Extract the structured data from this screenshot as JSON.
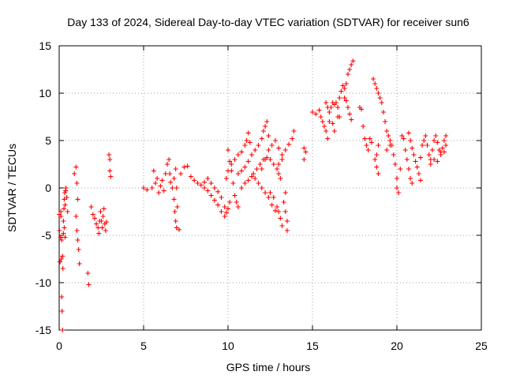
{
  "chart_data": {
    "type": "scatter",
    "title": "Day 133 of 2024, Sidereal Day-to-day VTEC variation (SDTVAR) for receiver sun6",
    "xlabel": "GPS time / hours",
    "ylabel": "SDTVAR / TECUs",
    "xlim": [
      0,
      25
    ],
    "ylim": [
      -15,
      15
    ],
    "x_ticks": [
      0,
      5,
      10,
      15,
      20,
      25
    ],
    "x_tick_labels": [
      "0",
      "5",
      "10",
      "15",
      "20",
      "25"
    ],
    "y_ticks": [
      -15,
      -10,
      -5,
      0,
      5,
      10,
      15
    ],
    "y_tick_labels": [
      "-15",
      "-10",
      "-5",
      "0",
      "5",
      "10",
      "15"
    ],
    "grid": true,
    "marker": "+",
    "series": [
      {
        "name": "SDTVAR sun6",
        "color": "#ff0000",
        "points": [
          [
            0.0,
            -2.8
          ],
          [
            0.02,
            -4.5
          ],
          [
            0.05,
            -7.8
          ],
          [
            0.08,
            -5.2
          ],
          [
            0.1,
            -3.0
          ],
          [
            0.12,
            -7.5
          ],
          [
            0.15,
            -11.5
          ],
          [
            0.17,
            -13.0
          ],
          [
            0.2,
            -15.0
          ],
          [
            0.22,
            -8.5
          ],
          [
            0.25,
            -4.8
          ],
          [
            0.28,
            -2.2
          ],
          [
            0.3,
            -1.2
          ],
          [
            0.33,
            -0.5
          ],
          [
            0.35,
            -1.8
          ],
          [
            0.38,
            -0.3
          ],
          [
            0.4,
            0.0
          ],
          [
            0.45,
            -1.0
          ],
          [
            0.5,
            -2.5
          ],
          [
            0.1,
            -2.5
          ],
          [
            0.15,
            -5.5
          ],
          [
            0.2,
            -7.2
          ],
          [
            0.25,
            -3.5
          ],
          [
            0.3,
            -4.2
          ],
          [
            0.35,
            -5.2
          ],
          [
            0.9,
            1.5
          ],
          [
            1.0,
            2.2
          ],
          [
            1.05,
            0.5
          ],
          [
            1.1,
            -1.2
          ],
          [
            1.0,
            -3.0
          ],
          [
            1.05,
            -4.5
          ],
          [
            1.1,
            -5.5
          ],
          [
            1.15,
            -6.5
          ],
          [
            1.2,
            -8.0
          ],
          [
            1.7,
            -9.0
          ],
          [
            1.75,
            -10.2
          ],
          [
            1.9,
            -2.0
          ],
          [
            2.0,
            -2.8
          ],
          [
            2.1,
            -3.2
          ],
          [
            2.2,
            -3.8
          ],
          [
            2.3,
            -4.2
          ],
          [
            2.35,
            -4.8
          ],
          [
            2.4,
            -3.5
          ],
          [
            2.45,
            -2.5
          ],
          [
            2.5,
            -3.5
          ],
          [
            2.55,
            -4.2
          ],
          [
            2.6,
            -3.0
          ],
          [
            2.65,
            -2.2
          ],
          [
            2.7,
            -3.8
          ],
          [
            2.75,
            -4.5
          ],
          [
            2.8,
            -3.6
          ],
          [
            2.95,
            3.5
          ],
          [
            3.0,
            3.0
          ],
          [
            3.0,
            1.8
          ],
          [
            3.05,
            1.2
          ],
          [
            5.0,
            0.0
          ],
          [
            5.2,
            -0.2
          ],
          [
            5.5,
            0.0
          ],
          [
            5.6,
            1.8
          ],
          [
            5.7,
            0.5
          ],
          [
            5.8,
            1.0
          ],
          [
            5.9,
            -0.5
          ],
          [
            6.0,
            0.2
          ],
          [
            6.1,
            0.8
          ],
          [
            6.2,
            -0.3
          ],
          [
            6.3,
            1.5
          ],
          [
            6.4,
            2.5
          ],
          [
            6.5,
            3.0
          ],
          [
            6.55,
            1.5
          ],
          [
            6.6,
            0.6
          ],
          [
            6.7,
            0.0
          ],
          [
            6.8,
            1.0
          ],
          [
            6.9,
            2.0
          ],
          [
            6.95,
            0.0
          ],
          [
            6.8,
            -1.2
          ],
          [
            6.85,
            -2.5
          ],
          [
            6.9,
            -3.5
          ],
          [
            6.95,
            -4.2
          ],
          [
            7.0,
            -2.0
          ],
          [
            7.1,
            -4.4
          ],
          [
            7.2,
            1.5
          ],
          [
            7.4,
            2.2
          ],
          [
            7.6,
            2.3
          ],
          [
            7.8,
            1.2
          ],
          [
            8.0,
            0.8
          ],
          [
            8.2,
            0.5
          ],
          [
            8.4,
            0.3
          ],
          [
            8.6,
            0.6
          ],
          [
            8.8,
            1.0
          ],
          [
            9.0,
            0.5
          ],
          [
            9.2,
            0.0
          ],
          [
            9.4,
            -0.4
          ],
          [
            9.6,
            -1.0
          ],
          [
            9.8,
            -2.0
          ],
          [
            9.9,
            -2.6
          ],
          [
            10.0,
            -2.2
          ],
          [
            10.1,
            -1.5
          ],
          [
            8.6,
            0.0
          ],
          [
            8.8,
            -0.3
          ],
          [
            9.0,
            -0.8
          ],
          [
            9.2,
            -1.3
          ],
          [
            9.4,
            -1.8
          ],
          [
            9.6,
            -2.5
          ],
          [
            9.8,
            -3.0
          ],
          [
            10.0,
            4.0
          ],
          [
            10.1,
            2.8
          ],
          [
            10.2,
            1.8
          ],
          [
            10.3,
            0.5
          ],
          [
            10.4,
            -0.8
          ],
          [
            10.5,
            -1.5
          ],
          [
            10.6,
            -2.0
          ],
          [
            9.9,
            1.0
          ],
          [
            10.0,
            1.8
          ],
          [
            10.2,
            2.5
          ],
          [
            10.4,
            3.0
          ],
          [
            10.6,
            3.5
          ],
          [
            10.8,
            3.8
          ],
          [
            11.0,
            4.5
          ],
          [
            11.1,
            5.0
          ],
          [
            11.2,
            5.8
          ],
          [
            11.3,
            4.8
          ],
          [
            10.6,
            1.5
          ],
          [
            10.8,
            1.8
          ],
          [
            11.0,
            2.2
          ],
          [
            11.2,
            2.8
          ],
          [
            11.4,
            3.5
          ],
          [
            11.6,
            4.0
          ],
          [
            11.8,
            4.5
          ],
          [
            12.0,
            5.2
          ],
          [
            12.1,
            6.0
          ],
          [
            12.2,
            6.5
          ],
          [
            12.3,
            7.0
          ],
          [
            12.4,
            5.5
          ],
          [
            10.8,
            0.0
          ],
          [
            11.0,
            0.5
          ],
          [
            11.2,
            0.8
          ],
          [
            11.4,
            1.2
          ],
          [
            11.6,
            1.0
          ],
          [
            11.8,
            0.5
          ],
          [
            12.0,
            0.0
          ],
          [
            12.2,
            -0.5
          ],
          [
            12.4,
            -1.0
          ],
          [
            12.6,
            -1.8
          ],
          [
            12.8,
            -2.4
          ],
          [
            11.5,
            1.5
          ],
          [
            11.7,
            2.0
          ],
          [
            11.9,
            2.5
          ],
          [
            12.1,
            3.0
          ],
          [
            12.3,
            3.2
          ],
          [
            12.5,
            3.0
          ],
          [
            12.7,
            2.5
          ],
          [
            12.9,
            2.0
          ],
          [
            13.0,
            1.5
          ],
          [
            13.1,
            1.0
          ],
          [
            12.0,
            2.0
          ],
          [
            12.2,
            3.0
          ],
          [
            12.4,
            4.0
          ],
          [
            12.6,
            4.5
          ],
          [
            12.8,
            5.0
          ],
          [
            13.0,
            4.2
          ],
          [
            13.2,
            3.0
          ],
          [
            12.5,
            -0.5
          ],
          [
            12.7,
            -1.0
          ],
          [
            12.9,
            -2.0
          ],
          [
            13.0,
            -2.5
          ],
          [
            13.1,
            -3.2
          ],
          [
            13.2,
            -4.0
          ],
          [
            13.3,
            -1.5
          ],
          [
            13.4,
            -2.5
          ],
          [
            13.5,
            -3.5
          ],
          [
            13.5,
            -4.5
          ],
          [
            13.4,
            -0.5
          ],
          [
            13.0,
            2.5
          ],
          [
            13.2,
            3.5
          ],
          [
            13.4,
            4.0
          ],
          [
            13.6,
            4.6
          ],
          [
            13.8,
            5.2
          ],
          [
            13.9,
            6.0
          ],
          [
            14.5,
            4.2
          ],
          [
            14.6,
            3.8
          ],
          [
            14.5,
            3.0
          ],
          [
            15.0,
            8.0
          ],
          [
            15.2,
            7.8
          ],
          [
            15.4,
            8.2
          ],
          [
            15.5,
            7.5
          ],
          [
            15.6,
            7.0
          ],
          [
            15.7,
            6.5
          ],
          [
            15.8,
            6.0
          ],
          [
            15.9,
            5.2
          ],
          [
            16.0,
            7.0
          ],
          [
            15.8,
            9.0
          ],
          [
            15.9,
            8.5
          ],
          [
            16.0,
            8.0
          ],
          [
            16.1,
            8.5
          ],
          [
            16.2,
            9.0
          ],
          [
            16.3,
            8.8
          ],
          [
            16.4,
            9.0
          ],
          [
            16.5,
            8.5
          ],
          [
            16.6,
            7.5
          ],
          [
            16.2,
            6.8
          ],
          [
            16.3,
            6.0
          ],
          [
            16.5,
            7.5
          ],
          [
            16.6,
            9.5
          ],
          [
            16.7,
            10.2
          ],
          [
            16.8,
            10.8
          ],
          [
            16.9,
            10.5
          ],
          [
            17.0,
            11.0
          ],
          [
            17.1,
            12.0
          ],
          [
            17.2,
            12.5
          ],
          [
            17.3,
            13.0
          ],
          [
            17.4,
            13.4
          ],
          [
            16.9,
            9.5
          ],
          [
            17.0,
            9.2
          ],
          [
            17.1,
            8.5
          ],
          [
            17.2,
            7.8
          ],
          [
            17.3,
            7.2
          ],
          [
            17.8,
            8.5
          ],
          [
            17.9,
            8.3
          ],
          [
            18.0,
            6.5
          ],
          [
            18.1,
            5.2
          ],
          [
            18.2,
            4.5
          ],
          [
            18.3,
            4.0
          ],
          [
            18.4,
            5.2
          ],
          [
            18.5,
            4.8
          ],
          [
            18.6,
            11.5
          ],
          [
            18.7,
            11.0
          ],
          [
            18.8,
            10.5
          ],
          [
            18.9,
            10.0
          ],
          [
            19.0,
            9.5
          ],
          [
            19.1,
            9.0
          ],
          [
            19.2,
            8.0
          ],
          [
            19.3,
            7.0
          ],
          [
            19.4,
            6.0
          ],
          [
            19.5,
            5.5
          ],
          [
            19.6,
            5.0
          ],
          [
            19.7,
            4.5
          ],
          [
            18.7,
            3.0
          ],
          [
            18.8,
            2.2
          ],
          [
            18.9,
            1.5
          ],
          [
            18.8,
            3.5
          ],
          [
            18.9,
            4.5
          ],
          [
            19.4,
            4.0
          ],
          [
            19.6,
            4.5
          ],
          [
            19.8,
            3.5
          ],
          [
            19.9,
            2.5
          ],
          [
            20.0,
            1.0
          ],
          [
            20.0,
            0.0
          ],
          [
            20.1,
            -0.5
          ],
          [
            20.2,
            2.0
          ],
          [
            20.3,
            5.5
          ],
          [
            20.4,
            5.2
          ],
          [
            20.5,
            4.0
          ],
          [
            20.6,
            3.0
          ],
          [
            20.7,
            2.0
          ],
          [
            20.8,
            1.0
          ],
          [
            20.9,
            0.5
          ],
          [
            20.7,
            5.8
          ],
          [
            20.8,
            5.0
          ],
          [
            20.9,
            4.2
          ],
          [
            21.0,
            3.5
          ],
          [
            21.1,
            2.8
          ],
          [
            21.2,
            2.2
          ],
          [
            21.3,
            1.5
          ],
          [
            21.4,
            0.8
          ],
          [
            21.4,
            3.2
          ],
          [
            21.5,
            4.5
          ],
          [
            21.6,
            5.0
          ],
          [
            21.7,
            5.5
          ],
          [
            21.8,
            4.5
          ],
          [
            21.9,
            3.5
          ],
          [
            22.0,
            3.0
          ],
          [
            22.1,
            4.0
          ],
          [
            22.2,
            5.0
          ],
          [
            22.3,
            5.5
          ],
          [
            22.4,
            4.8
          ],
          [
            22.5,
            4.0
          ],
          [
            22.6,
            3.5
          ],
          [
            22.7,
            4.2
          ],
          [
            22.8,
            5.0
          ],
          [
            22.9,
            4.5
          ],
          [
            22.0,
            2.5
          ],
          [
            22.2,
            3.0
          ],
          [
            22.4,
            2.8
          ],
          [
            22.6,
            3.8
          ],
          [
            22.8,
            3.8
          ],
          [
            22.9,
            5.5
          ]
        ]
      }
    ]
  }
}
